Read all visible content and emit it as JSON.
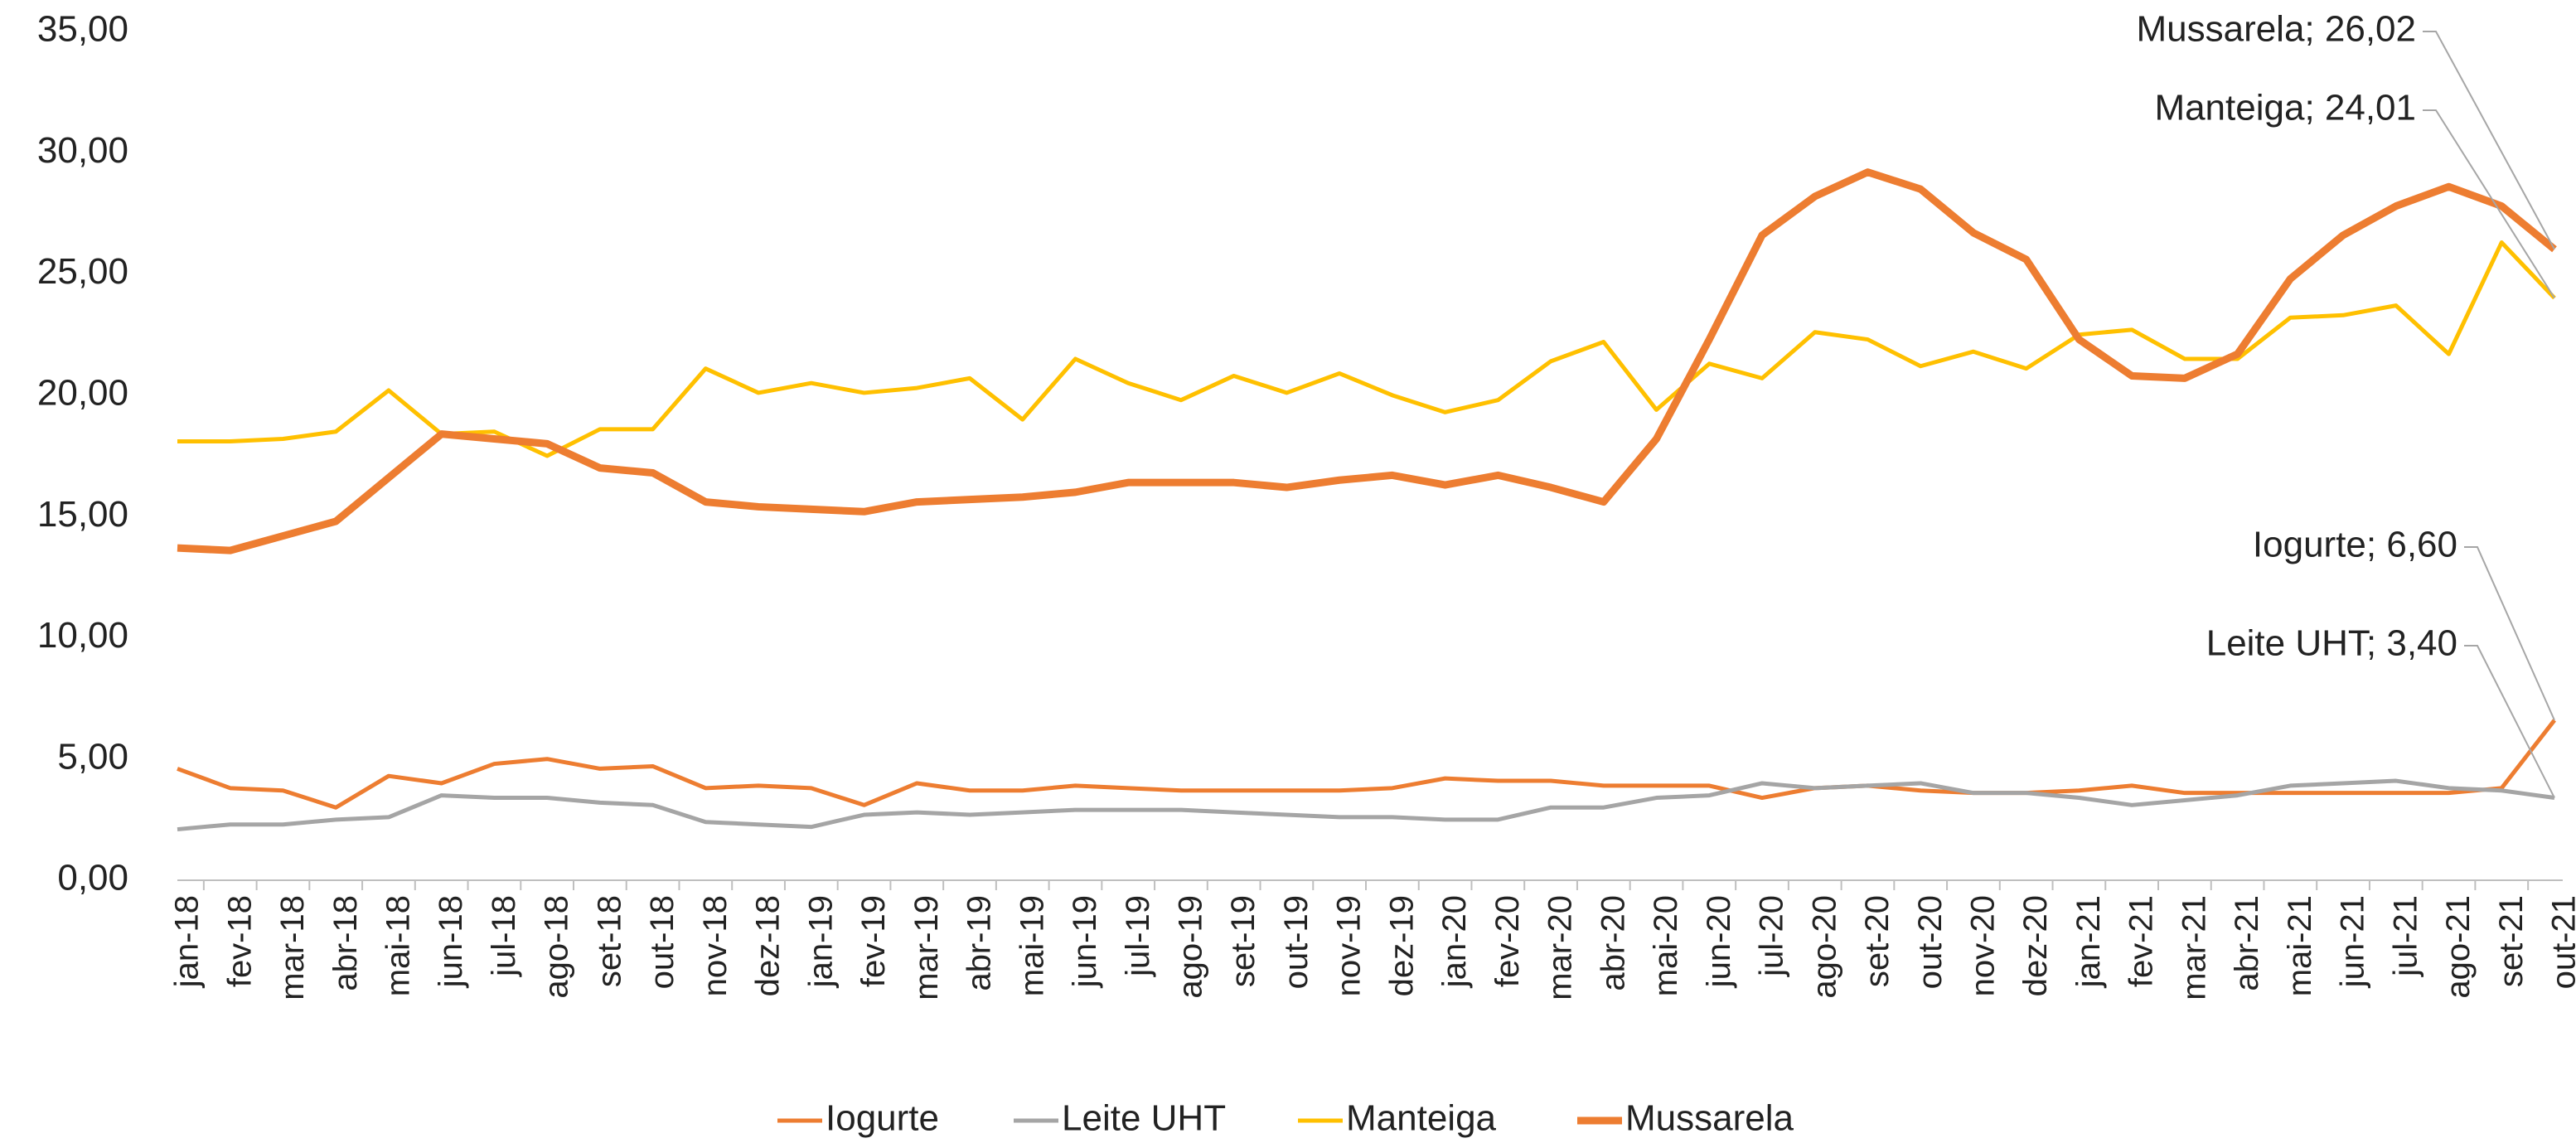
{
  "chart_data": {
    "type": "line",
    "categories": [
      "jan-18",
      "fev-18",
      "mar-18",
      "abr-18",
      "mai-18",
      "jun-18",
      "jul-18",
      "ago-18",
      "set-18",
      "out-18",
      "nov-18",
      "dez-18",
      "jan-19",
      "fev-19",
      "mar-19",
      "abr-19",
      "mai-19",
      "jun-19",
      "jul-19",
      "ago-19",
      "set-19",
      "out-19",
      "nov-19",
      "dez-19",
      "jan-20",
      "fev-20",
      "mar-20",
      "abr-20",
      "mai-20",
      "jun-20",
      "jul-20",
      "ago-20",
      "set-20",
      "out-20",
      "nov-20",
      "dez-20",
      "jan-21",
      "fev-21",
      "mar-21",
      "abr-21",
      "mai-21",
      "jun-21",
      "jul-21",
      "ago-21",
      "set-21",
      "out-21"
    ],
    "series": [
      {
        "name": "Iogurte",
        "color": "#ED7D31",
        "width": 5,
        "values": [
          4.6,
          3.8,
          3.7,
          3.0,
          4.3,
          4.0,
          4.8,
          5.0,
          4.6,
          4.7,
          3.8,
          3.9,
          3.8,
          3.1,
          4.0,
          3.7,
          3.7,
          3.9,
          3.8,
          3.7,
          3.7,
          3.7,
          3.7,
          3.8,
          4.2,
          4.1,
          4.1,
          3.9,
          3.9,
          3.9,
          3.4,
          3.8,
          3.9,
          3.7,
          3.6,
          3.6,
          3.7,
          3.9,
          3.6,
          3.6,
          3.6,
          3.6,
          3.6,
          3.6,
          3.8,
          6.6
        ],
        "value_labels": [
          null,
          null,
          null,
          null,
          null,
          null,
          null,
          null,
          null,
          null,
          null,
          null,
          null,
          null,
          null,
          null,
          null,
          null,
          null,
          null,
          null,
          null,
          null,
          null,
          null,
          null,
          null,
          null,
          null,
          null,
          null,
          null,
          null,
          null,
          null,
          null,
          null,
          null,
          null,
          null,
          null,
          null,
          null,
          null,
          null,
          "Iogurte; 6,60"
        ]
      },
      {
        "name": "Leite UHT",
        "color": "#A5A5A5",
        "width": 5,
        "values": [
          2.1,
          2.3,
          2.3,
          2.5,
          2.6,
          3.5,
          3.4,
          3.4,
          3.2,
          3.1,
          2.4,
          2.3,
          2.2,
          2.7,
          2.8,
          2.7,
          2.8,
          2.9,
          2.9,
          2.9,
          2.8,
          2.7,
          2.6,
          2.6,
          2.5,
          2.5,
          3.0,
          3.0,
          3.4,
          3.5,
          4.0,
          3.8,
          3.9,
          4.0,
          3.6,
          3.6,
          3.4,
          3.1,
          3.3,
          3.5,
          3.9,
          4.0,
          4.1,
          3.8,
          3.7,
          3.4
        ],
        "value_labels": [
          null,
          null,
          null,
          null,
          null,
          null,
          null,
          null,
          null,
          null,
          null,
          null,
          null,
          null,
          null,
          null,
          null,
          null,
          null,
          null,
          null,
          null,
          null,
          null,
          null,
          null,
          null,
          null,
          null,
          null,
          null,
          null,
          null,
          null,
          null,
          null,
          null,
          null,
          null,
          null,
          null,
          null,
          null,
          null,
          null,
          "Leite UHT; 3,40"
        ]
      },
      {
        "name": "Manteiga",
        "color": "#FFC000",
        "width": 5,
        "values": [
          18.1,
          18.1,
          18.2,
          18.5,
          20.2,
          18.4,
          18.5,
          17.5,
          18.6,
          18.6,
          21.1,
          20.1,
          20.5,
          20.1,
          20.3,
          20.7,
          19.0,
          21.5,
          20.5,
          19.8,
          20.8,
          20.1,
          20.9,
          20.0,
          19.3,
          19.8,
          21.4,
          22.2,
          19.4,
          21.3,
          20.7,
          22.6,
          22.3,
          21.2,
          21.8,
          21.1,
          22.5,
          22.7,
          21.5,
          21.5,
          23.2,
          23.3,
          23.7,
          21.7,
          26.3,
          24.01
        ],
        "value_labels": [
          null,
          null,
          null,
          null,
          null,
          null,
          null,
          null,
          null,
          null,
          null,
          null,
          null,
          null,
          null,
          null,
          null,
          null,
          null,
          null,
          null,
          null,
          null,
          null,
          null,
          null,
          null,
          null,
          null,
          null,
          null,
          null,
          null,
          null,
          null,
          null,
          null,
          null,
          null,
          null,
          null,
          null,
          null,
          null,
          null,
          "Manteiga; 24,01"
        ]
      },
      {
        "name": "Mussarela",
        "color": "#ED7D31",
        "width": 9,
        "values": [
          13.7,
          13.6,
          14.2,
          14.8,
          16.6,
          18.4,
          18.2,
          18.0,
          17.0,
          16.8,
          15.6,
          15.4,
          15.3,
          15.2,
          15.6,
          15.7,
          15.8,
          16.0,
          16.4,
          16.4,
          16.4,
          16.2,
          16.5,
          16.7,
          16.3,
          16.7,
          16.2,
          15.6,
          18.2,
          22.3,
          26.6,
          28.2,
          29.2,
          28.5,
          26.7,
          25.6,
          22.3,
          20.8,
          20.7,
          21.7,
          24.8,
          26.6,
          27.8,
          28.6,
          27.8,
          26.02
        ],
        "value_labels": [
          null,
          null,
          null,
          null,
          null,
          null,
          null,
          null,
          null,
          null,
          null,
          null,
          null,
          null,
          null,
          null,
          null,
          null,
          null,
          null,
          null,
          null,
          null,
          null,
          null,
          null,
          null,
          null,
          null,
          null,
          null,
          null,
          null,
          null,
          null,
          null,
          null,
          null,
          null,
          null,
          null,
          null,
          null,
          null,
          null,
          "Mussarela; 26,02"
        ]
      }
    ],
    "ylim": [
      0,
      35
    ],
    "yticks": [
      {
        "value": 0,
        "label": "0,00"
      },
      {
        "value": 5,
        "label": "5,00"
      },
      {
        "value": 10,
        "label": "10,00"
      },
      {
        "value": 15,
        "label": "15,00"
      },
      {
        "value": 20,
        "label": "20,00"
      },
      {
        "value": 25,
        "label": "25,00"
      },
      {
        "value": 30,
        "label": "30,00"
      },
      {
        "value": 35,
        "label": "35,00"
      }
    ],
    "grid": false,
    "legend": "bottom"
  }
}
